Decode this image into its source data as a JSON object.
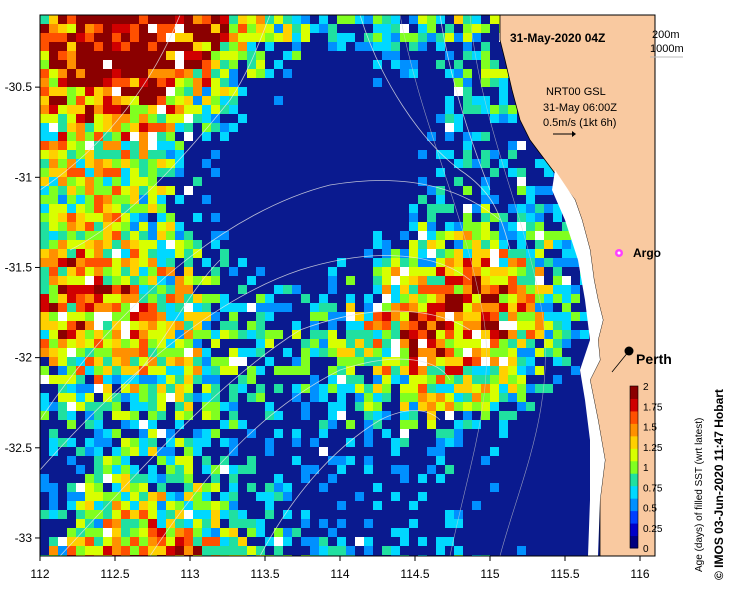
{
  "map": {
    "timestamp": "31-May-2020 04Z",
    "depth_legend": [
      "200m",
      "1000m"
    ],
    "current_info": {
      "line1": "NRT00 GSL",
      "line2": "31-May 06:00Z",
      "line3": "0.5m/s (1kt 6h)"
    },
    "places": [
      {
        "name": "Argo",
        "marker": "magenta-star"
      },
      {
        "name": "Perth",
        "marker": "black-dot"
      }
    ],
    "x_axis": {
      "ticks": [
        "112",
        "112.5",
        "113",
        "113.5",
        "114",
        "114.5",
        "115",
        "115.5",
        "116"
      ],
      "range": [
        112,
        116.1
      ]
    },
    "y_axis": {
      "ticks": [
        "-30.5",
        "-31",
        "-31.5",
        "-32",
        "-32.5",
        "-33"
      ],
      "range": [
        -33.1,
        -30.1
      ]
    },
    "colorbar": {
      "label": "Age (days) of filled SST (wrt latest)",
      "ticks": [
        "2",
        "1.75",
        "1.5",
        "1.25",
        "1",
        "0.75",
        "0.5",
        "0.25",
        "0"
      ],
      "colors": [
        "#00007f",
        "#0000c8",
        "#0040ff",
        "#0090ff",
        "#00d8ff",
        "#20e0a0",
        "#80ff20",
        "#d8ff00",
        "#ffd000",
        "#ff9000",
        "#ff5000",
        "#d00000",
        "#8b0000"
      ]
    },
    "credit": "© IMOS 03-Jun-2020 11:47 Hobart",
    "colors": {
      "land": "#f9c9a0",
      "ocean_base": "#0a1a8f",
      "no_data": "#ffffff"
    }
  }
}
